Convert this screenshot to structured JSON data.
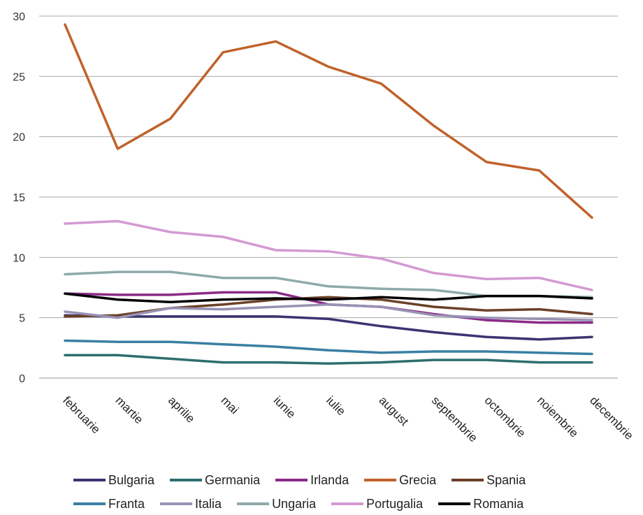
{
  "chart_data": {
    "type": "line",
    "title": "",
    "xlabel": "",
    "ylabel": "",
    "ylim": [
      0,
      30
    ],
    "yticks": [
      "0",
      "5",
      "10",
      "15",
      "20",
      "25",
      "30"
    ],
    "grid": true,
    "legend_position": "bottom",
    "categories": [
      "februarie",
      "martie",
      "aprilie",
      "mai",
      "iunie",
      "iulie",
      "august",
      "septembrie",
      "octombrie",
      "noiembrie",
      "decembrie"
    ],
    "series": [
      {
        "name": "Bulgaria",
        "color": "#3b3472",
        "values": [
          5.2,
          5.1,
          5.1,
          5.1,
          5.1,
          4.9,
          4.3,
          3.8,
          3.4,
          3.2,
          3.4
        ]
      },
      {
        "name": "Germania",
        "color": "#2e6e6e",
        "values": [
          1.9,
          1.9,
          1.6,
          1.3,
          1.3,
          1.2,
          1.3,
          1.5,
          1.5,
          1.3,
          1.3
        ]
      },
      {
        "name": "Irlanda",
        "color": "#8b2a87",
        "values": [
          7.0,
          6.9,
          6.9,
          7.1,
          7.1,
          6.1,
          5.9,
          5.3,
          4.8,
          4.6,
          4.6
        ]
      },
      {
        "name": "Grecia",
        "color": "#c0622b",
        "values": [
          29.3,
          19.0,
          21.5,
          27.0,
          27.9,
          25.8,
          24.4,
          20.9,
          17.9,
          17.2,
          13.3
        ]
      },
      {
        "name": "Spania",
        "color": "#6b4128",
        "values": [
          5.1,
          5.2,
          5.8,
          6.1,
          6.5,
          6.7,
          6.5,
          5.9,
          5.6,
          5.7,
          5.3
        ]
      },
      {
        "name": "Franta",
        "color": "#3a7fa3",
        "values": [
          3.1,
          3.0,
          3.0,
          2.8,
          2.6,
          2.3,
          2.1,
          2.2,
          2.2,
          2.1,
          2.0
        ]
      },
      {
        "name": "Italia",
        "color": "#9892b4",
        "values": [
          5.5,
          5.0,
          5.8,
          5.7,
          5.9,
          6.1,
          5.9,
          5.2,
          5.0,
          4.9,
          4.8
        ]
      },
      {
        "name": "Ungaria",
        "color": "#8eaaaa",
        "values": [
          8.6,
          8.8,
          8.8,
          8.3,
          8.3,
          7.6,
          7.4,
          7.3,
          6.8,
          6.8,
          6.7
        ]
      },
      {
        "name": "Portugalia",
        "color": "#d39ad2",
        "values": [
          12.8,
          13.0,
          12.1,
          11.7,
          10.6,
          10.5,
          9.9,
          8.7,
          8.2,
          8.3,
          7.3
        ]
      },
      {
        "name": "Romania",
        "color": "#000000",
        "values": [
          7.0,
          6.5,
          6.3,
          6.5,
          6.6,
          6.5,
          6.7,
          6.5,
          6.8,
          6.8,
          6.6
        ]
      }
    ]
  }
}
